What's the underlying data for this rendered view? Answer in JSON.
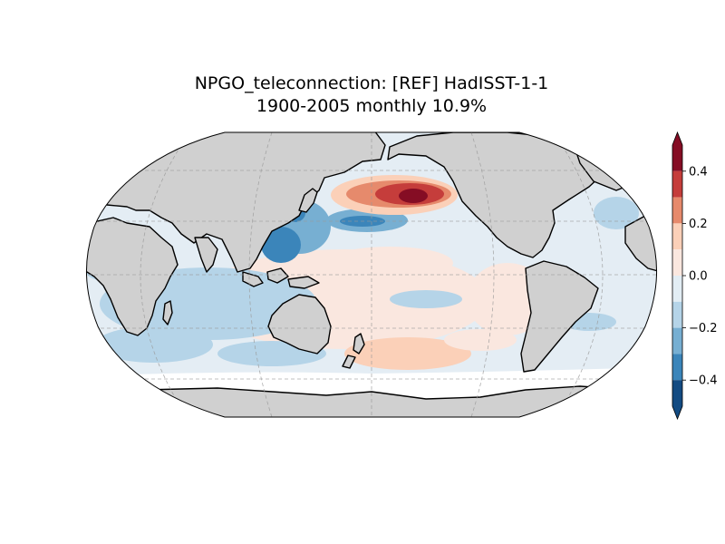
{
  "title": "NPGO_teleconnection: [REF] HadISST-1-1",
  "subtitle": "1900-2005 monthly 10.9%",
  "colorbar": {
    "ticks": [
      {
        "value": 0.4,
        "label": "0.4"
      },
      {
        "value": 0.2,
        "label": "0.2"
      },
      {
        "value": 0.0,
        "label": "0.0"
      },
      {
        "value": -0.2,
        "label": "−0.2"
      },
      {
        "value": -0.4,
        "label": "−0.4"
      }
    ],
    "range": [
      -0.5,
      0.5
    ],
    "bins": [
      {
        "from": 0.4,
        "to": 0.5,
        "color": "#850d24"
      },
      {
        "from": 0.3,
        "to": 0.4,
        "color": "#c53d3b"
      },
      {
        "from": 0.2,
        "to": 0.3,
        "color": "#e68a6c"
      },
      {
        "from": 0.1,
        "to": 0.2,
        "color": "#fbd0b8"
      },
      {
        "from": 0.0,
        "to": 0.1,
        "color": "#fae7df"
      },
      {
        "from": -0.1,
        "to": 0.0,
        "color": "#e2edf4"
      },
      {
        "from": -0.2,
        "to": -0.1,
        "color": "#b5d4e8"
      },
      {
        "from": -0.3,
        "to": -0.2,
        "color": "#77afd2"
      },
      {
        "from": -0.4,
        "to": -0.3,
        "color": "#3b85ba"
      },
      {
        "from": -0.5,
        "to": -0.4,
        "color": "#134b82"
      }
    ],
    "extend": "both"
  },
  "map": {
    "projection": "Robinson",
    "central_longitude": 180,
    "land_color": "#d0d0d0",
    "coastline_color": "#000000",
    "gridlines": true
  }
}
